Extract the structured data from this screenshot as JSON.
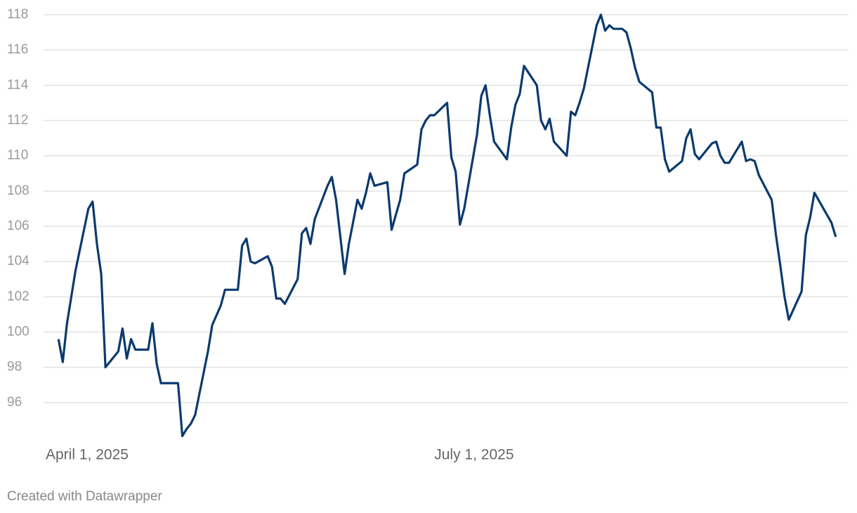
{
  "chart_data": {
    "type": "line",
    "x": [
      "2025-04-04",
      "2025-04-05",
      "2025-04-06",
      "2025-04-07",
      "2025-04-08",
      "2025-04-11",
      "2025-04-12",
      "2025-04-13",
      "2025-04-14",
      "2025-04-15",
      "2025-04-18",
      "2025-04-19",
      "2025-04-20",
      "2025-04-21",
      "2025-04-22",
      "2025-04-25",
      "2025-04-26",
      "2025-04-27",
      "2025-04-28",
      "2025-05-02",
      "2025-05-03",
      "2025-05-04",
      "2025-05-05",
      "2025-05-06",
      "2025-05-09",
      "2025-05-10",
      "2025-05-12",
      "2025-05-13",
      "2025-05-16",
      "2025-05-17",
      "2025-05-18",
      "2025-05-19",
      "2025-05-20",
      "2025-05-23",
      "2025-05-24",
      "2025-05-25",
      "2025-05-26",
      "2025-05-27",
      "2025-05-30",
      "2025-05-31",
      "2025-06-01",
      "2025-06-02",
      "2025-06-03",
      "2025-06-06",
      "2025-06-07",
      "2025-06-08",
      "2025-06-10",
      "2025-06-11",
      "2025-06-13",
      "2025-06-14",
      "2025-06-15",
      "2025-06-16",
      "2025-06-17",
      "2025-06-20",
      "2025-06-21",
      "2025-06-23",
      "2025-06-24",
      "2025-06-27",
      "2025-06-28",
      "2025-06-29",
      "2025-06-30",
      "2025-07-01",
      "2025-07-04",
      "2025-07-05",
      "2025-07-06",
      "2025-07-07",
      "2025-07-08",
      "2025-07-11",
      "2025-07-12",
      "2025-07-13",
      "2025-07-14",
      "2025-07-15",
      "2025-07-18",
      "2025-07-19",
      "2025-07-20",
      "2025-07-21",
      "2025-07-22",
      "2025-07-25",
      "2025-07-26",
      "2025-07-27",
      "2025-07-28",
      "2025-07-29",
      "2025-08-01",
      "2025-08-02",
      "2025-08-03",
      "2025-08-04",
      "2025-08-05",
      "2025-08-08",
      "2025-08-09",
      "2025-08-10",
      "2025-08-11",
      "2025-08-12",
      "2025-08-14",
      "2025-08-15",
      "2025-08-16",
      "2025-08-17",
      "2025-08-18",
      "2025-08-21",
      "2025-08-22",
      "2025-08-23",
      "2025-08-24",
      "2025-08-25",
      "2025-08-28",
      "2025-08-29",
      "2025-08-30",
      "2025-08-31",
      "2025-09-01",
      "2025-09-04",
      "2025-09-05",
      "2025-09-06",
      "2025-09-07",
      "2025-09-08",
      "2025-09-11",
      "2025-09-12",
      "2025-09-13",
      "2025-09-14",
      "2025-09-15",
      "2025-09-18",
      "2025-09-19",
      "2025-09-20",
      "2025-09-21",
      "2025-09-22",
      "2025-09-25",
      "2025-09-26",
      "2025-09-27",
      "2025-09-28",
      "2025-10-02",
      "2025-10-03"
    ],
    "series": [
      {
        "color": "#0b3a6e",
        "values": [
          99.6,
          98.3,
          100.5,
          102.0,
          103.5,
          107.0,
          107.4,
          105.0,
          103.3,
          98.0,
          98.9,
          100.2,
          98.5,
          99.6,
          99.0,
          99.0,
          100.5,
          98.2,
          97.1,
          97.1,
          94.1,
          94.5,
          94.8,
          95.3,
          98.9,
          100.4,
          101.5,
          102.4,
          102.4,
          104.9,
          105.3,
          104.0,
          103.9,
          104.3,
          103.7,
          101.9,
          101.9,
          101.6,
          103.0,
          105.6,
          105.9,
          105.0,
          106.4,
          108.3,
          108.8,
          107.5,
          103.3,
          105.0,
          107.5,
          107.0,
          107.9,
          109.0,
          108.3,
          108.5,
          105.8,
          107.5,
          109.0,
          109.5,
          111.5,
          112.0,
          112.3,
          112.3,
          113.0,
          109.9,
          109.1,
          106.1,
          107.0,
          111.2,
          113.4,
          114.0,
          112.3,
          110.8,
          109.8,
          111.6,
          112.9,
          113.5,
          115.1,
          114.0,
          112.0,
          111.5,
          112.1,
          110.8,
          110.0,
          112.5,
          112.3,
          113.0,
          113.8,
          117.4,
          118.0,
          117.1,
          117.4,
          117.2,
          117.2,
          117.0,
          116.1,
          115.0,
          114.2,
          113.6,
          111.6,
          111.6,
          109.8,
          109.1,
          109.7,
          111.0,
          111.5,
          110.1,
          109.8,
          110.7,
          110.8,
          110.0,
          109.6,
          109.6,
          110.8,
          109.7,
          109.8,
          109.7,
          108.9,
          107.5,
          105.5,
          103.8,
          102.0,
          100.7,
          102.3,
          105.5,
          106.5,
          107.9,
          106.2,
          105.4
        ]
      }
    ],
    "xlim": [
      "2025-04-01",
      "2025-10-06"
    ],
    "xticks": [
      {
        "value": "2025-04-01",
        "label": "April 1, 2025"
      },
      {
        "value": "2025-07-01",
        "label": "July 1, 2025"
      }
    ],
    "ylim": [
      94,
      118
    ],
    "yticks": [
      96,
      98,
      100,
      102,
      104,
      106,
      108,
      110,
      112,
      114,
      116,
      118
    ],
    "grid": true,
    "footer": "Created with Datawrapper"
  }
}
